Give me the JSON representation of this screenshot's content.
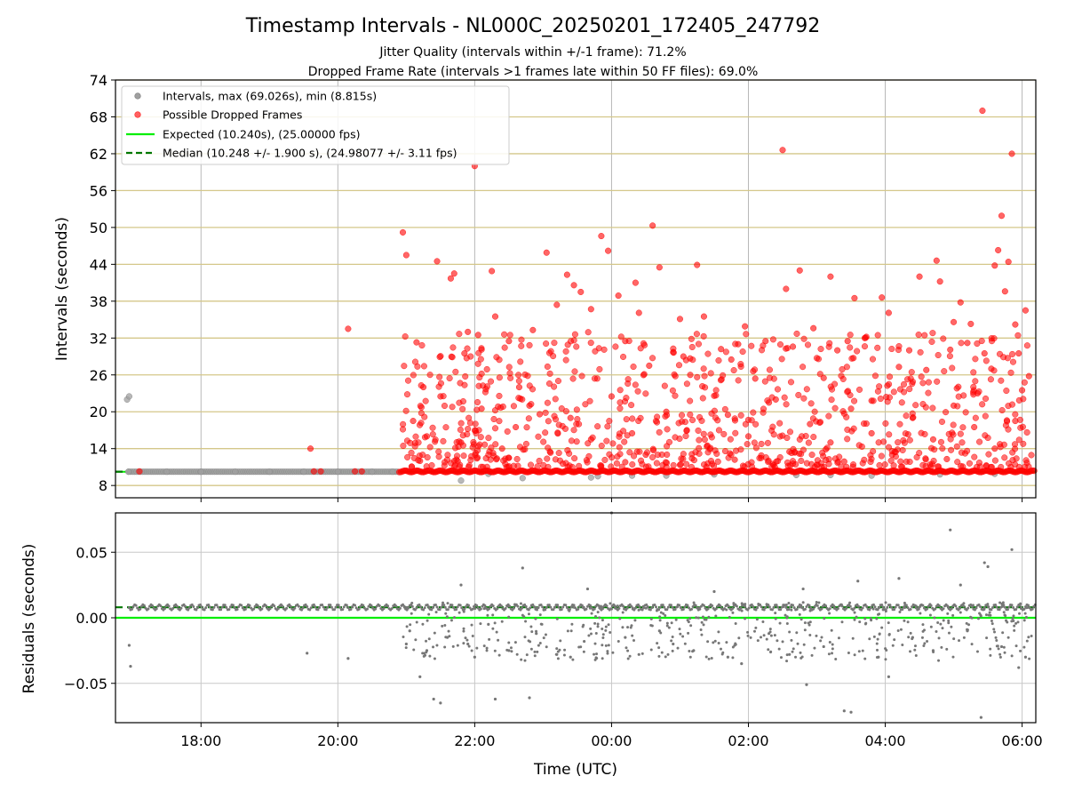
{
  "chart_data": [
    {
      "type": "scatter",
      "title": "Timestamp Intervals - NL000C_20250201_172405_247792",
      "subtitle_lines": [
        "Jitter Quality (intervals within +/-1 frame): 71.2%",
        "Dropped Frame Rate (intervals >1 frames late within 50 FF files): 69.0%"
      ],
      "xlabel": "",
      "ylabel": "Intervals (seconds)",
      "x_unit": "hours since 00:00 UTC",
      "xlim": [
        -7.25,
        6.2
      ],
      "ylim": [
        6,
        74
      ],
      "yticks": [
        8,
        14,
        20,
        26,
        32,
        38,
        44,
        50,
        56,
        62,
        68,
        74
      ],
      "grid": true,
      "legend_position": "top-left",
      "legend": [
        "Intervals, max (69.026s), min (8.815s)",
        "Possible Dropped Frames",
        "Expected (10.240s), (25.00000 fps)",
        "Median (10.248 +/- 1.900 s), (24.98077 +/- 3.11 fps)"
      ],
      "expected_interval": 10.24,
      "median_interval": 10.248,
      "colors": {
        "intervals": "#a0a0a0",
        "dropped": "#ff0000",
        "expected": "#00ee00",
        "median": "#007700",
        "reference_lines": "#d4c78a"
      },
      "series": [
        {
          "name": "Intervals, max (69.026s), min (8.815s)",
          "points": [
            [
              -7.08,
              22.0
            ],
            [
              -7.05,
              22.5
            ],
            [
              -7.06,
              10.24
            ],
            [
              -6.5,
              10.24
            ],
            [
              -6.0,
              10.24
            ],
            [
              -5.5,
              10.24
            ],
            [
              -5.0,
              10.24
            ],
            [
              -4.5,
              10.24
            ],
            [
              -4.0,
              10.24
            ],
            [
              -3.5,
              10.24
            ],
            [
              -3.2,
              10.24
            ],
            [
              -2.2,
              8.8
            ],
            [
              -1.3,
              9.2
            ],
            [
              -0.3,
              9.3
            ],
            [
              -0.2,
              9.5
            ],
            [
              0.8,
              9.6
            ],
            [
              3.2,
              9.7
            ],
            [
              3.8,
              9.6
            ],
            [
              4.8,
              9.8
            ],
            [
              5.6,
              9.9
            ],
            [
              1.5,
              9.8
            ],
            [
              2.7,
              9.7
            ],
            [
              -1.8,
              9.9
            ],
            [
              0.3,
              9.6
            ]
          ]
        },
        {
          "name": "Possible Dropped Frames",
          "points": [
            [
              -6.9,
              10.3
            ],
            [
              -4.4,
              14.0
            ],
            [
              -4.35,
              10.3
            ],
            [
              -4.25,
              10.3
            ],
            [
              -3.85,
              33.5
            ],
            [
              -3.75,
              10.3
            ],
            [
              -3.65,
              10.3
            ],
            [
              -3.05,
              49.2
            ],
            [
              -3.0,
              45.5
            ],
            [
              -2.85,
              31.3
            ],
            [
              -2.75,
              24.0
            ],
            [
              -2.55,
              44.5
            ],
            [
              -2.35,
              41.7
            ],
            [
              -2.3,
              42.5
            ],
            [
              -2.15,
              29.5
            ],
            [
              -2.1,
              33.0
            ],
            [
              -2.0,
              60.0
            ],
            [
              -1.95,
              32.5
            ],
            [
              -1.75,
              42.9
            ],
            [
              -1.7,
              35.5
            ],
            [
              -1.5,
              31.5
            ],
            [
              -1.35,
              24.0
            ],
            [
              -1.15,
              33.3
            ],
            [
              -1.05,
              19.6
            ],
            [
              -0.95,
              45.9
            ],
            [
              -0.8,
              37.4
            ],
            [
              -0.65,
              42.3
            ],
            [
              -0.55,
              40.6
            ],
            [
              -0.45,
              39.5
            ],
            [
              -0.3,
              36.7
            ],
            [
              -0.15,
              48.6
            ],
            [
              -0.05,
              46.2
            ],
            [
              0.1,
              38.9
            ],
            [
              0.2,
              31.5
            ],
            [
              0.35,
              41.0
            ],
            [
              0.4,
              36.1
            ],
            [
              0.55,
              27.5
            ],
            [
              0.6,
              50.3
            ],
            [
              0.7,
              43.5
            ],
            [
              0.9,
              29.7
            ],
            [
              1.0,
              35.1
            ],
            [
              1.05,
              29.0
            ],
            [
              1.15,
              26.0
            ],
            [
              1.25,
              43.9
            ],
            [
              1.35,
              35.5
            ],
            [
              1.5,
              22.6
            ],
            [
              1.6,
              30.2
            ],
            [
              1.75,
              28.5
            ],
            [
              1.85,
              31.0
            ],
            [
              1.95,
              33.9
            ],
            [
              2.1,
              25.4
            ],
            [
              2.25,
              31.5
            ],
            [
              2.4,
              22.0
            ],
            [
              2.5,
              62.6
            ],
            [
              2.55,
              40.0
            ],
            [
              2.65,
              30.6
            ],
            [
              2.75,
              43.0
            ],
            [
              2.95,
              33.6
            ],
            [
              3.1,
              25.5
            ],
            [
              3.2,
              42.0
            ],
            [
              3.3,
              30.0
            ],
            [
              3.45,
              31.5
            ],
            [
              3.55,
              38.5
            ],
            [
              3.7,
              32.0
            ],
            [
              3.8,
              21.8
            ],
            [
              3.95,
              38.6
            ],
            [
              4.05,
              36.1
            ],
            [
              4.2,
              27.3
            ],
            [
              4.35,
              30.0
            ],
            [
              4.5,
              42.0
            ],
            [
              4.6,
              26.8
            ],
            [
              4.75,
              44.6
            ],
            [
              4.8,
              41.2
            ],
            [
              4.95,
              30.1
            ],
            [
              5.0,
              34.6
            ],
            [
              5.1,
              37.8
            ],
            [
              5.2,
              31.2
            ],
            [
              5.25,
              34.3
            ],
            [
              5.35,
              23.0
            ],
            [
              5.42,
              69.0
            ],
            [
              5.45,
              29.5
            ],
            [
              5.55,
              27.0
            ],
            [
              5.6,
              43.8
            ],
            [
              5.65,
              46.3
            ],
            [
              5.7,
              51.9
            ],
            [
              5.75,
              39.6
            ],
            [
              5.8,
              44.4
            ],
            [
              5.85,
              62.0
            ],
            [
              5.9,
              34.2
            ],
            [
              5.95,
              29.5
            ],
            [
              6.0,
              23.5
            ],
            [
              6.05,
              36.5
            ],
            [
              6.1,
              25.8
            ],
            [
              -2.9,
              18.5
            ],
            [
              -2.7,
              16.0
            ],
            [
              -2.5,
              22.5
            ],
            [
              -2.2,
              15.0
            ],
            [
              -1.9,
              20.5
            ],
            [
              -1.6,
              14.0
            ],
            [
              -1.4,
              17.5
            ],
            [
              -1.2,
              21.0
            ],
            [
              -0.9,
              13.5
            ],
            [
              -0.6,
              19.0
            ],
            [
              -0.3,
              15.5
            ],
            [
              0.0,
              22.5
            ],
            [
              0.3,
              16.5
            ],
            [
              0.5,
              13.0
            ],
            [
              0.8,
              20.0
            ],
            [
              1.1,
              17.0
            ],
            [
              1.4,
              14.5
            ],
            [
              1.7,
              19.5
            ],
            [
              2.0,
              16.0
            ],
            [
              2.3,
              21.5
            ],
            [
              2.6,
              13.5
            ],
            [
              2.9,
              18.0
            ],
            [
              3.2,
              15.0
            ],
            [
              3.5,
              20.5
            ],
            [
              3.8,
              16.5
            ],
            [
              4.1,
              13.0
            ],
            [
              4.4,
              19.0
            ],
            [
              4.7,
              15.5
            ],
            [
              5.0,
              21.0
            ],
            [
              5.3,
              17.5
            ],
            [
              5.6,
              14.0
            ],
            [
              5.9,
              18.5
            ],
            [
              -2.8,
              12.0
            ],
            [
              -1.5,
              12.5
            ],
            [
              0.2,
              11.8
            ],
            [
              1.8,
              12.2
            ],
            [
              3.4,
              11.9
            ],
            [
              4.9,
              12.3
            ]
          ]
        }
      ],
      "dropped_band": {
        "x_start": -3.1,
        "x_end": 6.2,
        "y": 10.3
      }
    },
    {
      "type": "scatter",
      "xlabel": "Time (UTC)",
      "ylabel": "Residuals (seconds)",
      "x_unit": "hours since 00:00 UTC",
      "xlim": [
        -7.25,
        6.2
      ],
      "ylim": [
        -0.08,
        0.08
      ],
      "yticks": [
        -0.05,
        0.0,
        0.05
      ],
      "ytick_labels": [
        "−0.05",
        "0.00",
        "0.05"
      ],
      "xticks": [
        -6,
        -4,
        -2,
        0,
        2,
        4,
        6
      ],
      "xtick_labels": [
        "18:00",
        "20:00",
        "22:00",
        "00:00",
        "02:00",
        "04:00",
        "06:00"
      ],
      "grid": true,
      "expected_line": 0.0,
      "median_line": 0.008,
      "colors": {
        "points": "#777777",
        "expected": "#00ee00",
        "median": "#007700"
      },
      "series": [
        {
          "name": "",
          "points": [
            [
              -7.05,
              -0.021
            ],
            [
              -7.03,
              -0.037
            ],
            [
              -4.45,
              -0.027
            ],
            [
              -3.85,
              -0.031
            ],
            [
              -3.0,
              -0.02
            ],
            [
              -2.8,
              -0.045
            ],
            [
              -2.6,
              -0.062
            ],
            [
              -2.5,
              -0.065
            ],
            [
              -2.2,
              0.025
            ],
            [
              -2.0,
              -0.03
            ],
            [
              -1.7,
              -0.062
            ],
            [
              -1.3,
              0.038
            ],
            [
              -1.2,
              -0.061
            ],
            [
              -0.8,
              -0.028
            ],
            [
              -0.35,
              0.022
            ],
            [
              0.0,
              0.08
            ],
            [
              0.2,
              -0.015
            ],
            [
              0.9,
              -0.02
            ],
            [
              1.5,
              0.02
            ],
            [
              1.7,
              -0.03
            ],
            [
              2.85,
              -0.051
            ],
            [
              2.8,
              0.022
            ],
            [
              3.4,
              -0.071
            ],
            [
              3.5,
              -0.072
            ],
            [
              3.6,
              0.028
            ],
            [
              4.05,
              -0.045
            ],
            [
              4.2,
              0.03
            ],
            [
              4.95,
              0.067
            ],
            [
              5.1,
              0.025
            ],
            [
              5.4,
              -0.076
            ],
            [
              5.45,
              0.042
            ],
            [
              5.5,
              0.039
            ],
            [
              5.85,
              0.052
            ],
            [
              5.95,
              -0.038
            ],
            [
              6.05,
              -0.03
            ],
            [
              -2.95,
              -0.01
            ],
            [
              -2.7,
              -0.025
            ],
            [
              -2.4,
              -0.015
            ],
            [
              -2.1,
              -0.02
            ],
            [
              -1.8,
              -0.005
            ],
            [
              -1.5,
              -0.025
            ],
            [
              -1.1,
              -0.012
            ],
            [
              -0.6,
              -0.03
            ],
            [
              -0.4,
              -0.018
            ],
            [
              0.4,
              -0.028
            ],
            [
              0.7,
              -0.01
            ],
            [
              1.2,
              -0.025
            ],
            [
              1.9,
              -0.035
            ],
            [
              2.3,
              -0.012
            ],
            [
              2.6,
              -0.028
            ],
            [
              3.1,
              -0.022
            ],
            [
              3.9,
              -0.03
            ],
            [
              4.4,
              -0.015
            ],
            [
              4.7,
              -0.025
            ],
            [
              5.2,
              -0.01
            ],
            [
              5.7,
              -0.022
            ]
          ]
        }
      ],
      "point_band": {
        "x_start": -7.05,
        "x_end": 6.2,
        "y": 0.008
      }
    }
  ]
}
